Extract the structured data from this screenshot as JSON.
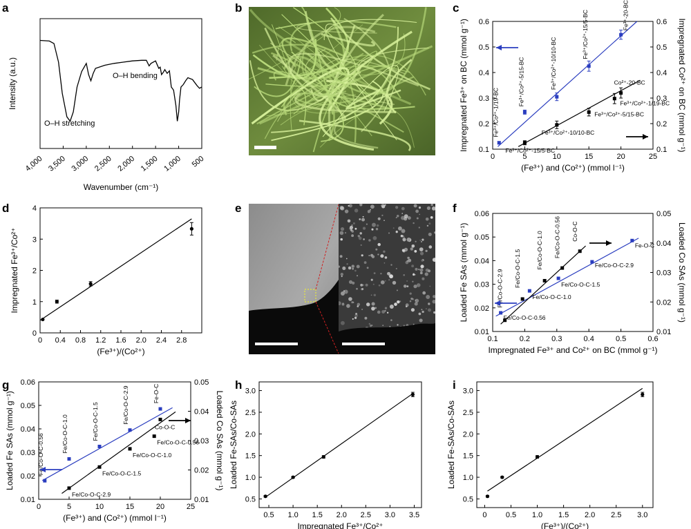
{
  "panels": {
    "a": {
      "letter": "a"
    },
    "b": {
      "letter": "b"
    },
    "c": {
      "letter": "c"
    },
    "d": {
      "letter": "d"
    },
    "e": {
      "letter": "e"
    },
    "f": {
      "letter": "f"
    },
    "g": {
      "letter": "g"
    },
    "h": {
      "letter": "h"
    },
    "i": {
      "letter": "i"
    }
  },
  "chart_data": [
    {
      "id": "a",
      "type": "line",
      "xlabel": "Wavenumber (cm⁻¹)",
      "ylabel": "Intensity (a.u.)",
      "xlim": [
        4000,
        500
      ],
      "xticks": [
        "4,000",
        "3,500",
        "3,000",
        "2,500",
        "2,000",
        "1,500",
        "1,000",
        "500"
      ],
      "xtick_values": [
        4000,
        3500,
        3000,
        2500,
        2000,
        1500,
        1000,
        500
      ],
      "annotations": [
        "O–H stretching",
        "O–H bending"
      ],
      "curve_color": "#000000",
      "annotation_color": "#2a2a9a"
    },
    {
      "id": "c",
      "type": "scatter",
      "xlabel": "(Fe³⁺) and (Co²⁺) (mmol l⁻¹)",
      "ylabel_left": "Impregnated Fe³⁺ on BC (mmol g⁻¹)",
      "ylabel_right": "Impregnated Co²⁺ on BC (mmol g⁻¹)",
      "xlim": [
        0,
        25
      ],
      "xticks": [
        0,
        5,
        10,
        15,
        20,
        25
      ],
      "ylim_left": [
        0.1,
        0.6
      ],
      "yticks_left": [
        "0.1",
        "0.2",
        "0.3",
        "0.4",
        "0.5",
        "0.6"
      ],
      "ylim_right": [
        0.1,
        0.6
      ],
      "yticks_right": [
        "0.1",
        "0.2",
        "0.3",
        "0.4",
        "0.5",
        "0.6"
      ],
      "series": [
        {
          "axis": "left",
          "color": "#2a3dbf",
          "x": [
            1,
            5,
            10,
            15,
            20
          ],
          "y": [
            0.125,
            0.245,
            0.305,
            0.425,
            0.548
          ],
          "err": [
            0.005,
            0.008,
            0.015,
            0.02,
            0.018
          ],
          "fit": [
            [
              0.8,
              0.11
            ],
            [
              22.5,
              0.6
            ]
          ],
          "labels": [
            "Fe³⁺/Co²⁺-1/19-BC",
            "Fe³⁺/Co²⁺-5/15-BC",
            "Fe³⁺/Co²⁺-10/10-BC",
            "Fe³⁺/Co²⁺-15/5-BC",
            "Fe³⁺-20-BC"
          ]
        },
        {
          "axis": "right",
          "color": "#000000",
          "x": [
            5,
            10,
            15,
            19,
            20
          ],
          "y": [
            0.125,
            0.195,
            0.245,
            0.298,
            0.32
          ],
          "err": [
            0.008,
            0.015,
            0.015,
            0.02,
            0.02
          ],
          "fit": [
            [
              4.0,
              0.11
            ],
            [
              23.0,
              0.37
            ]
          ],
          "labels": [
            "Fe³⁺/Co²⁺-15/5-BC",
            "Fe³⁺/Co²⁺-10/10-BC",
            "Fe³⁺/Co²⁺-5/15-BC",
            "Fe³⁺/Co²⁺-1/19-BC",
            "Co²⁺-20-BC"
          ]
        }
      ]
    },
    {
      "id": "d",
      "type": "scatter",
      "xlabel": "(Fe³⁺)/(Co²⁺)",
      "ylabel": "Impregnated Fe³⁺/Co²⁺",
      "xlim": [
        0,
        3.2
      ],
      "xticks": [
        "0",
        "0.4",
        "0.8",
        "1.2",
        "1.6",
        "2.0",
        "2.4",
        "2.8"
      ],
      "xtick_values": [
        0,
        0.4,
        0.8,
        1.2,
        1.6,
        2.0,
        2.4,
        2.8
      ],
      "ylim": [
        0,
        4
      ],
      "yticks": [
        0,
        1,
        2,
        3,
        4
      ],
      "series": [
        {
          "color": "#000000",
          "x": [
            0.053,
            0.333,
            1.0,
            3.0
          ],
          "y": [
            0.43,
            1.0,
            1.57,
            3.33
          ],
          "err": [
            0.02,
            0.05,
            0.07,
            0.2
          ],
          "fit": [
            [
              0.0,
              0.4
            ],
            [
              3.0,
              3.65
            ]
          ]
        }
      ]
    },
    {
      "id": "f",
      "type": "scatter",
      "xlabel": "Impregnated Fe³⁺ and Co²⁺ on BC (mmol g⁻¹)",
      "ylabel_left": "Loaded Fe SAs (mmol g⁻¹)",
      "ylabel_right": "Loaded Co SAs (mmol g⁻¹)",
      "xlim": [
        0.1,
        0.6
      ],
      "xticks": [
        "0.1",
        "0.2",
        "0.3",
        "0.4",
        "0.5",
        "0.6"
      ],
      "ylim_left": [
        0.01,
        0.06
      ],
      "yticks_left": [
        "0.01",
        "0.02",
        "0.03",
        "0.04",
        "0.05",
        "0.06"
      ],
      "ylim_right": [
        0.01,
        0.05
      ],
      "yticks_right": [
        "0.01",
        "0.02",
        "0.03",
        "0.04",
        "0.05"
      ],
      "series": [
        {
          "axis": "left",
          "color": "#2a3dbf",
          "x": [
            0.125,
            0.215,
            0.305,
            0.41,
            0.535
          ],
          "y": [
            0.0179,
            0.0272,
            0.0325,
            0.0395,
            0.0485
          ],
          "fit": [
            [
              0.11,
              0.0165
            ],
            [
              0.555,
              0.0495
            ]
          ],
          "labels": [
            "Fe/Co-O-C-0.56",
            "Fe/Co-O-C-1.0",
            "Fe/Co-O-C-1.5",
            "Fe/Co-O-C-2.9",
            "Fe-O-C"
          ]
        },
        {
          "axis": "right",
          "color": "#000000",
          "x": [
            0.138,
            0.193,
            0.262,
            0.317,
            0.372
          ],
          "y": [
            0.0138,
            0.021,
            0.0272,
            0.0315,
            0.0372
          ],
          "fit": [
            [
              0.125,
              0.0125
            ],
            [
              0.39,
              0.039
            ]
          ],
          "labels": [
            "Fe/Co-O-C-2.9",
            "Fe/Co-O-C-1.5",
            "Fe/Co-O-C-1.0",
            "Fe/Co-O-C-0.56",
            "Co-O-C"
          ]
        }
      ]
    },
    {
      "id": "g",
      "type": "scatter",
      "xlabel": "(Fe³⁺) and (Co²⁺) (mmol l⁻¹)",
      "ylabel_left": "Loaded Fe SAs (mmol g⁻¹)",
      "ylabel_right": "Loaded Co SAs (mmol g⁻¹)",
      "xlim": [
        0,
        25
      ],
      "xticks": [
        0,
        5,
        10,
        15,
        20,
        25
      ],
      "ylim_left": [
        0.01,
        0.06
      ],
      "yticks_left": [
        "0.01",
        "0.02",
        "0.03",
        "0.04",
        "0.05",
        "0.06"
      ],
      "ylim_right": [
        0.01,
        0.05
      ],
      "yticks_right": [
        "0.01",
        "0.02",
        "0.03",
        "0.04",
        "0.05"
      ],
      "series": [
        {
          "axis": "left",
          "color": "#2a3dbf",
          "x": [
            1,
            5,
            10,
            15,
            20
          ],
          "y": [
            0.0179,
            0.0272,
            0.0325,
            0.0395,
            0.0485
          ],
          "fit": [
            [
              0.6,
              0.018
            ],
            [
              22.0,
              0.049
            ]
          ],
          "labels": [
            "Fe/Co-O-C-0.56",
            "Fe/Co-O-C-1.0",
            "Fe/Co-O-C-1.5",
            "Fe/Co-O-C-2.9",
            "Fe-O-C"
          ]
        },
        {
          "axis": "right",
          "color": "#000000",
          "x": [
            5,
            10,
            15,
            19,
            20
          ],
          "y": [
            0.0138,
            0.021,
            0.0272,
            0.0315,
            0.0372
          ],
          "fit": [
            [
              3.8,
              0.012
            ],
            [
              22.5,
              0.0398
            ]
          ],
          "labels": [
            "Fe/Co-O-C-2.9",
            "Fe/Co-O-C-1.5",
            "Fe/Co-O-C-1.0",
            "Fe/Co-O-C-0.56",
            "Co-O-C"
          ]
        }
      ]
    },
    {
      "id": "h",
      "type": "scatter",
      "xlabel": "Impregnated Fe³⁺/Co²⁺",
      "ylabel": "Loaded Fe-SAs/Co-SAs",
      "xlim": [
        0.3,
        3.65
      ],
      "xticks": [
        "0.5",
        "1.0",
        "1.5",
        "2.0",
        "2.5",
        "3.0",
        "3.5"
      ],
      "xtick_values": [
        0.5,
        1.0,
        1.5,
        2.0,
        2.5,
        3.0,
        3.5
      ],
      "ylim": [
        0.3,
        3.2
      ],
      "yticks": [
        "0.5",
        "1.0",
        "1.5",
        "2.0",
        "2.5",
        "3.0"
      ],
      "ytick_values": [
        0.5,
        1.0,
        1.5,
        2.0,
        2.5,
        3.0
      ],
      "series": [
        {
          "color": "#000000",
          "x": [
            0.43,
            1.0,
            1.63,
            3.47
          ],
          "y": [
            0.56,
            1.0,
            1.47,
            2.91
          ],
          "err": [
            0.02,
            0.02,
            0.03,
            0.05
          ],
          "fit": [
            [
              0.43,
              0.54
            ],
            [
              3.47,
              2.93
            ]
          ]
        }
      ]
    },
    {
      "id": "i",
      "type": "scatter",
      "xlabel": "(Fe³⁺)/(Co²⁺)",
      "ylabel": "Loaded Fe-SAs/Co-SAs",
      "xlim": [
        -0.15,
        3.2
      ],
      "xticks": [
        "0",
        "0.5",
        "1.0",
        "1.5",
        "2.0",
        "2.5",
        "3.0"
      ],
      "xtick_values": [
        0,
        0.5,
        1.0,
        1.5,
        2.0,
        2.5,
        3.0
      ],
      "ylim": [
        0.3,
        3.2
      ],
      "yticks": [
        "0.5",
        "1.0",
        "1.5",
        "2.0",
        "2.5",
        "3.0"
      ],
      "ytick_values": [
        0.5,
        1.0,
        1.5,
        2.0,
        2.5,
        3.0
      ],
      "series": [
        {
          "color": "#000000",
          "x": [
            0.053,
            0.333,
            1.0,
            3.0
          ],
          "y": [
            0.56,
            1.0,
            1.47,
            2.91
          ],
          "err": [
            0.02,
            0.02,
            0.03,
            0.05
          ],
          "fit": [
            [
              0.053,
              0.68
            ],
            [
              3.0,
              3.05
            ]
          ]
        }
      ]
    }
  ]
}
